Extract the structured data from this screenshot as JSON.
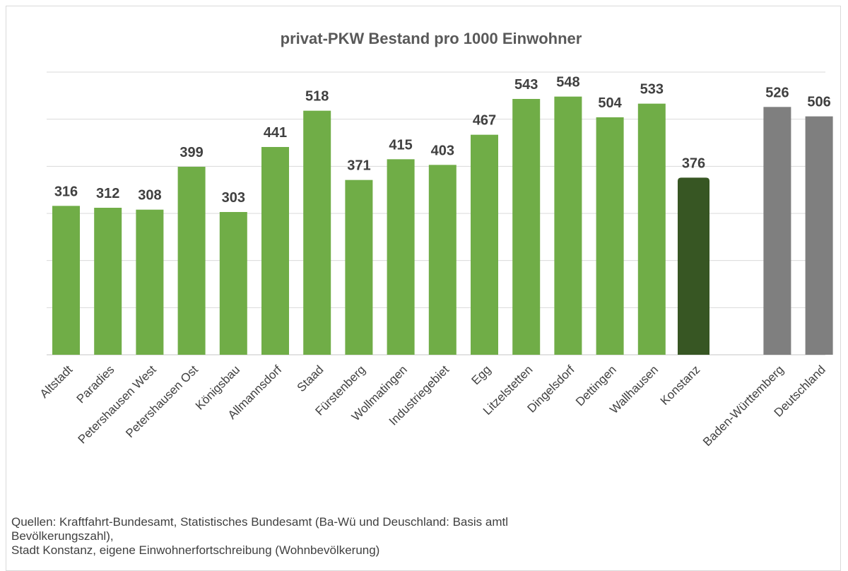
{
  "chart_data": {
    "type": "bar",
    "title": "privat-PKW Bestand pro 1000 Einwohner",
    "xlabel": "",
    "ylabel": "",
    "ylim": [
      0,
      600
    ],
    "grid": true,
    "legend": "none",
    "categories": [
      "Altstadt",
      "Paradies",
      "Petershausen West",
      "Petershausen Ost",
      "Königsbau",
      "Allmannsdorf",
      "Staad",
      "Fürstenberg",
      "Wollmatingen",
      "Industriegebiet",
      "Egg",
      "Litzelstetten",
      "Dingelsdorf",
      "Dettingen",
      "Wallhausen",
      "Konstanz",
      "Baden-Württemberg",
      "Deutschland"
    ],
    "values": [
      316,
      312,
      308,
      399,
      303,
      441,
      518,
      371,
      415,
      403,
      467,
      543,
      548,
      504,
      533,
      376,
      526,
      506
    ],
    "value_labels": [
      "316",
      "312",
      "308",
      "399",
      "303",
      "441",
      "518",
      "371",
      "415",
      "403",
      "467",
      "543",
      "548",
      "504",
      "533",
      "376",
      "526",
      "506"
    ],
    "colors": {
      "district": "#70ad47",
      "city_total": "#375623",
      "comparison": "#7f7f7f",
      "grid": "#d9d9d9"
    },
    "bar_groups": [
      "district",
      "district",
      "district",
      "district",
      "district",
      "district",
      "district",
      "district",
      "district",
      "district",
      "district",
      "district",
      "district",
      "district",
      "district",
      "city_total",
      "comparison",
      "comparison"
    ]
  },
  "source": {
    "line1": "Quellen: Kraftfahrt-Bundesamt, Statistisches Bundesamt (Ba-Wü und Deuschland: Basis amtl",
    "line2": "Bevölkerungszahl),",
    "line3": "Stadt Konstanz, eigene Einwohnerfortschreibung (Wohnbevölkerung)"
  }
}
